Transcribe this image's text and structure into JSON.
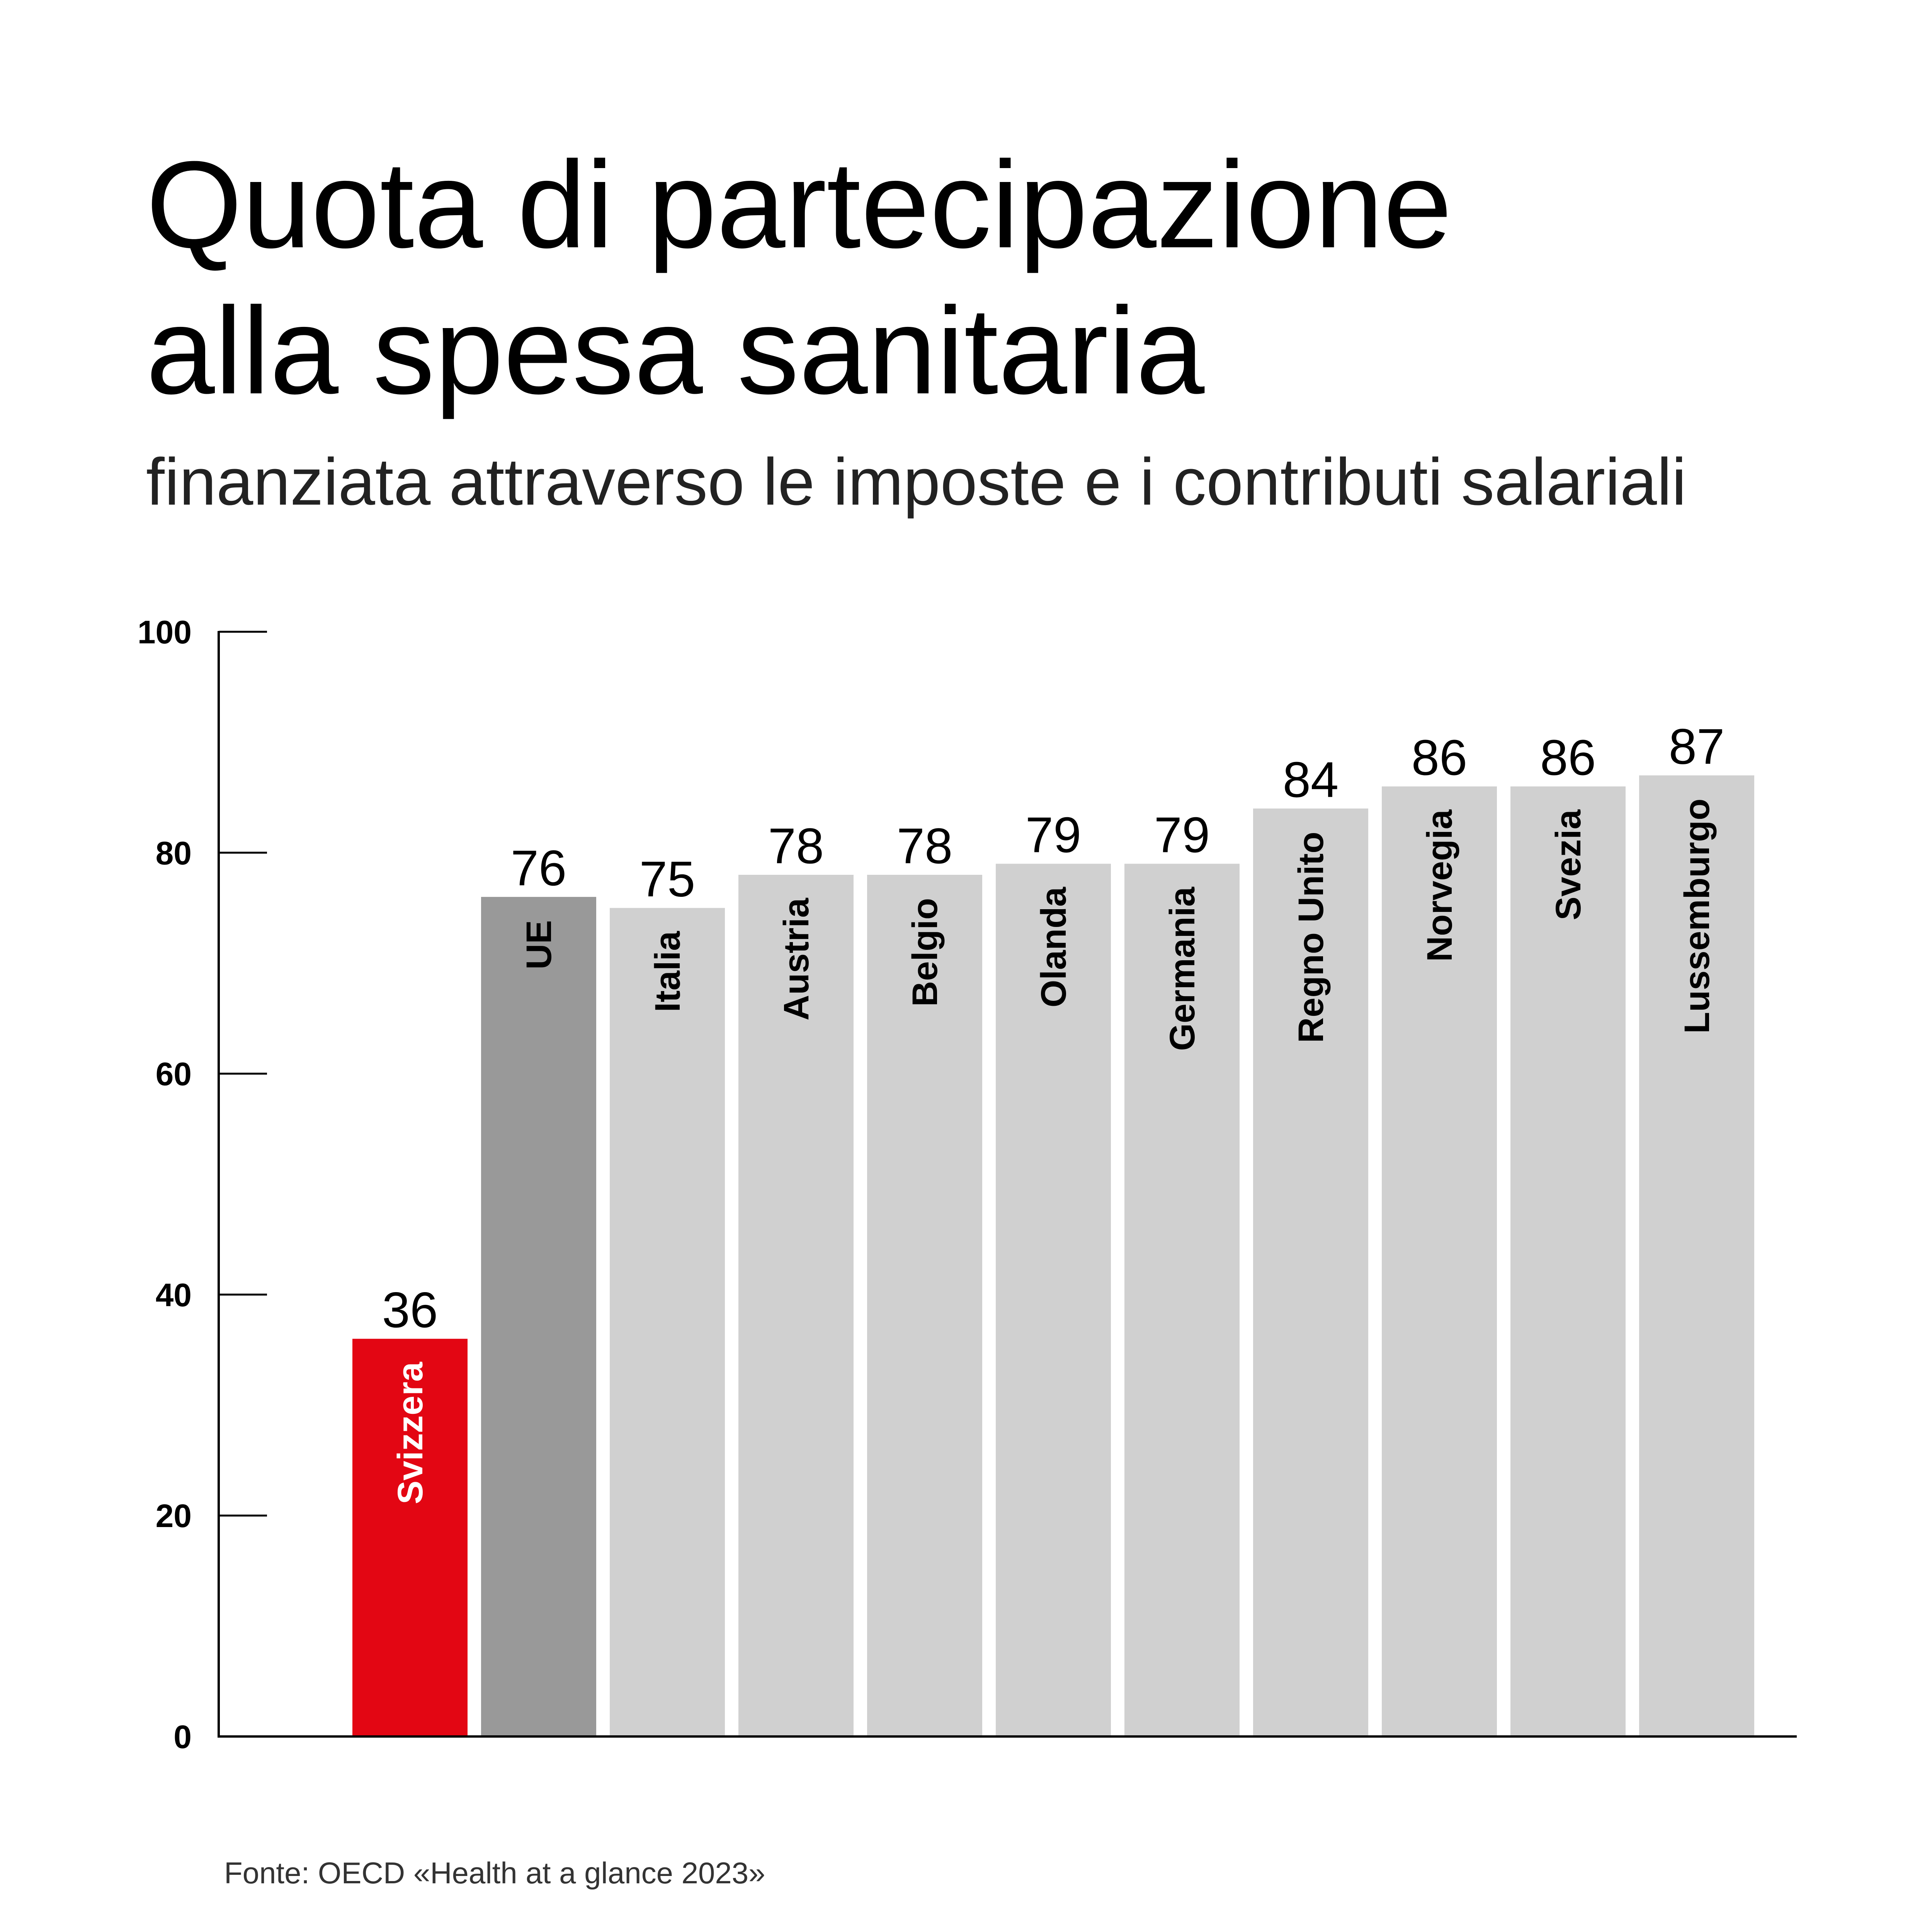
{
  "chart_data": {
    "type": "bar",
    "title_lines": [
      "Quota di partecipazione",
      "alla spesa sanitaria"
    ],
    "subtitle": "finanziata attraverso le imposte e i contributi salariali",
    "categories": [
      "Svizzera",
      "UE",
      "Italia",
      "Austria",
      "Belgio",
      "Olanda",
      "Germania",
      "Regno Unito",
      "Norvegia",
      "Svezia",
      "Lussemburgo"
    ],
    "values": [
      36,
      76,
      75,
      78,
      78,
      79,
      79,
      84,
      86,
      86,
      87
    ],
    "value_labels": [
      "36",
      "76",
      "75",
      "78",
      "78",
      "79",
      "79",
      "84",
      "86",
      "86",
      "87"
    ],
    "ylim": [
      0,
      100
    ],
    "yticks": [
      0,
      20,
      40,
      60,
      80,
      100
    ],
    "ytick_labels": [
      "0",
      "20",
      "40",
      "60",
      "80",
      "100"
    ],
    "xlabel": "",
    "ylabel": "",
    "grid": false,
    "colors": {
      "highlight": "#e30613",
      "average": "#999999",
      "default": "#d0d0d0",
      "highlight_text": "#ffffff",
      "default_text": "#000000"
    },
    "bar_color_keys": [
      "highlight",
      "average",
      "default",
      "default",
      "default",
      "default",
      "default",
      "default",
      "default",
      "default",
      "default"
    ],
    "source": "Fonte: OECD «Health at a glance 2023»"
  }
}
